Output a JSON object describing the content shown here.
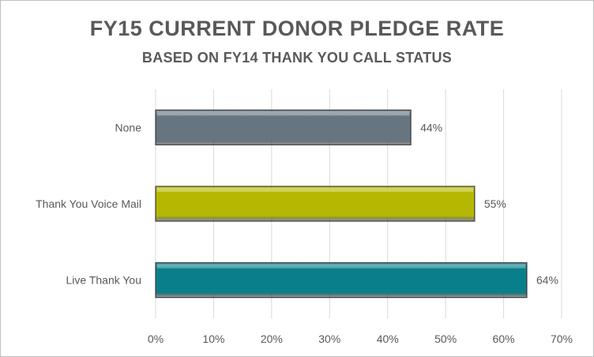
{
  "chart_data": {
    "type": "bar",
    "orientation": "horizontal",
    "title": "FY15 CURRENT DONOR PLEDGE RATE",
    "subtitle": "BASED ON FY14 THANK YOU CALL STATUS",
    "categories": [
      "None",
      "Thank You Voice Mail",
      "Live Thank You"
    ],
    "values": [
      0.44,
      0.55,
      0.64
    ],
    "data_labels": [
      "44%",
      "55%",
      "64%"
    ],
    "colors": [
      "#667580",
      "#b5b800",
      "#0a7f8c"
    ],
    "xlim": [
      0,
      0.7
    ],
    "x_ticks": [
      0,
      0.1,
      0.2,
      0.3,
      0.4,
      0.5,
      0.6,
      0.7
    ],
    "x_tick_labels": [
      "0%",
      "10%",
      "20%",
      "30%",
      "40%",
      "50%",
      "60%",
      "70%"
    ],
    "grid": true,
    "legend": "none"
  }
}
